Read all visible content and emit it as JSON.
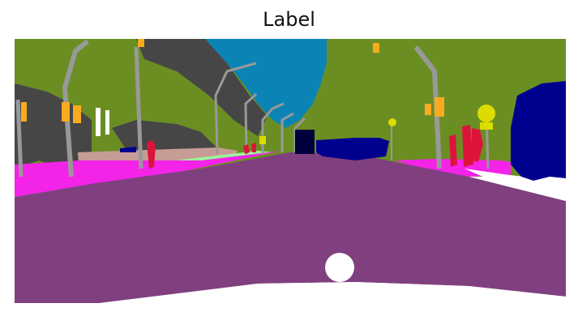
{
  "figure": {
    "title": "Label"
  },
  "palette": {
    "sky": "#0b84b5",
    "vegetation": "#6b8e23",
    "building": "#464646",
    "road": "#804080",
    "sidewalk": "#f423e8",
    "terrain": "#98fb98",
    "wall": "#c89c96",
    "pole": "#999999",
    "traffic_light": "#faaa1e",
    "traffic_sign": "#dcdc00",
    "person": "#dc143c",
    "rider": "#ff0000",
    "car": "#00008e",
    "truck": "#00003c",
    "void": "#ffffff"
  }
}
